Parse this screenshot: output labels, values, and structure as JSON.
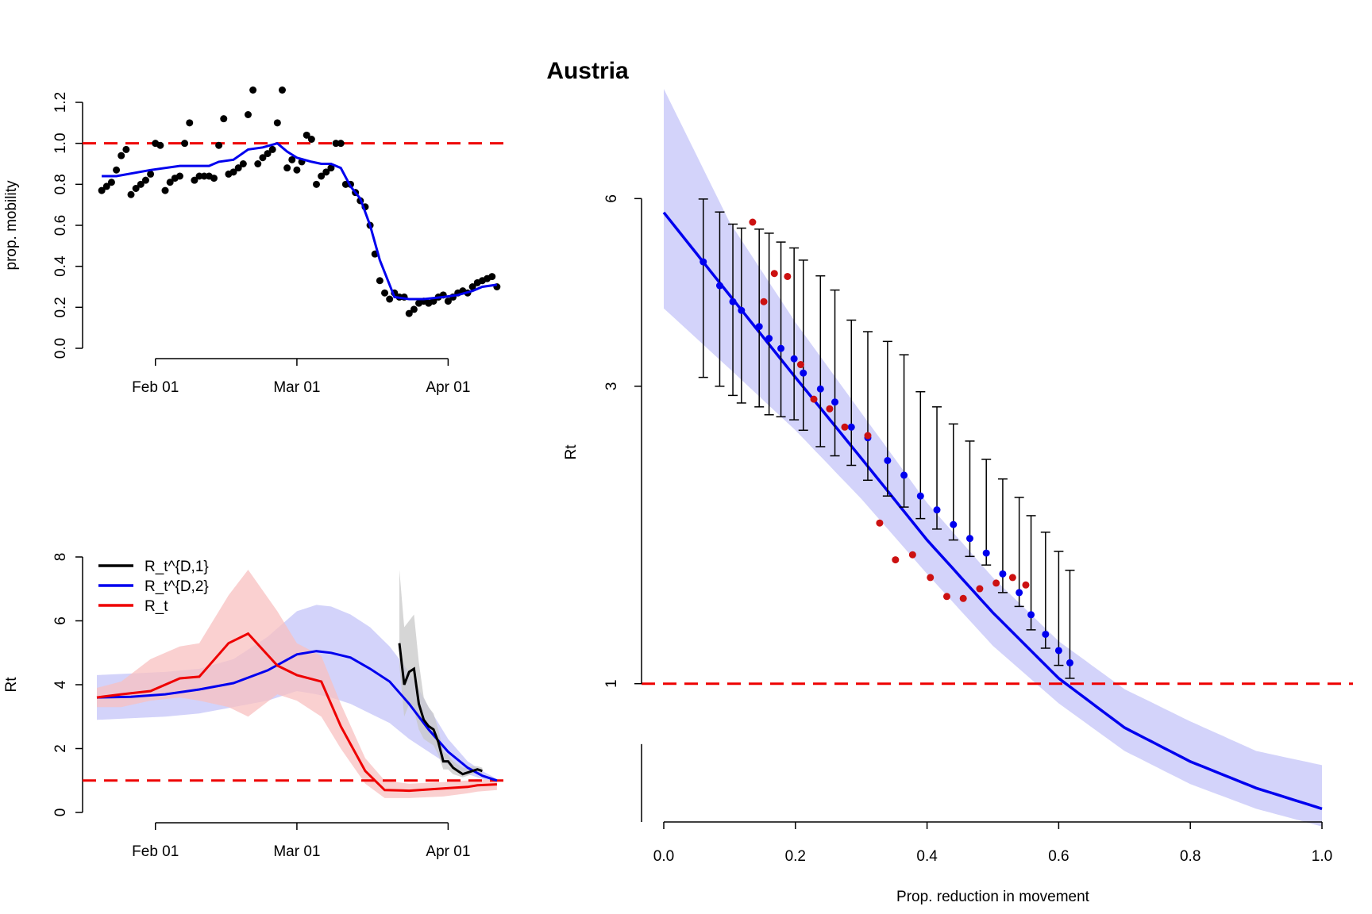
{
  "figure": {
    "title": "Austria"
  },
  "colors": {
    "black": "#000000",
    "blue": "#0000ee",
    "red": "#ee0000",
    "dark_red": "#cc1111",
    "blue_band": "#c4c4f8",
    "red_band": "#f8c0c0",
    "grey_band": "#c8c8c8"
  },
  "chart_data": [
    {
      "id": "mobility",
      "type": "scatter",
      "xlabel": "",
      "ylabel": "prop. mobility",
      "x_tick_labels": [
        "Feb 01",
        "Mar 01",
        "Apr 01"
      ],
      "x_tick_dates": [
        "2020-02-01",
        "2020-03-01",
        "2020-04-01"
      ],
      "x_range": [
        "2020-01-20",
        "2020-04-12"
      ],
      "y_ticks": [
        "0.0",
        "0.2",
        "0.4",
        "0.6",
        "0.8",
        "1.0",
        "1.2"
      ],
      "ylim": [
        0.0,
        1.2
      ],
      "reference_line": {
        "y": 1.0,
        "color": "red",
        "style": "dashed"
      },
      "series": [
        {
          "name": "",
          "color": "black",
          "marker": "point",
          "x": [
            "2020-01-21",
            "2020-01-22",
            "2020-01-23",
            "2020-01-24",
            "2020-01-25",
            "2020-01-26",
            "2020-01-27",
            "2020-01-28",
            "2020-01-29",
            "2020-01-30",
            "2020-01-31",
            "2020-02-01",
            "2020-02-02",
            "2020-02-03",
            "2020-02-04",
            "2020-02-05",
            "2020-02-06",
            "2020-02-07",
            "2020-02-08",
            "2020-02-09",
            "2020-02-10",
            "2020-02-11",
            "2020-02-12",
            "2020-02-13",
            "2020-02-14",
            "2020-02-15",
            "2020-02-16",
            "2020-02-17",
            "2020-02-18",
            "2020-02-19",
            "2020-02-20",
            "2020-02-21",
            "2020-02-22",
            "2020-02-23",
            "2020-02-24",
            "2020-02-25",
            "2020-02-26",
            "2020-02-27",
            "2020-02-28",
            "2020-02-29",
            "2020-03-01",
            "2020-03-02",
            "2020-03-03",
            "2020-03-04",
            "2020-03-05",
            "2020-03-06",
            "2020-03-07",
            "2020-03-08",
            "2020-03-09",
            "2020-03-10",
            "2020-03-11",
            "2020-03-12",
            "2020-03-13",
            "2020-03-14",
            "2020-03-15",
            "2020-03-16",
            "2020-03-17",
            "2020-03-18",
            "2020-03-19",
            "2020-03-20",
            "2020-03-21",
            "2020-03-22",
            "2020-03-23",
            "2020-03-24",
            "2020-03-25",
            "2020-03-26",
            "2020-03-27",
            "2020-03-28",
            "2020-03-29",
            "2020-03-30",
            "2020-03-31",
            "2020-04-01",
            "2020-04-02",
            "2020-04-03",
            "2020-04-04",
            "2020-04-05",
            "2020-04-06",
            "2020-04-07",
            "2020-04-08",
            "2020-04-09",
            "2020-04-10",
            "2020-04-11"
          ],
          "y": [
            0.77,
            0.79,
            0.81,
            0.87,
            0.94,
            0.97,
            0.75,
            0.78,
            0.8,
            0.82,
            0.85,
            1.0,
            0.99,
            0.77,
            0.81,
            0.83,
            0.84,
            1.0,
            1.1,
            0.82,
            0.84,
            0.84,
            0.84,
            0.83,
            0.99,
            1.12,
            0.85,
            0.86,
            0.88,
            0.9,
            1.14,
            1.26,
            0.9,
            0.93,
            0.95,
            0.97,
            1.1,
            1.26,
            0.88,
            0.92,
            0.87,
            0.91,
            1.04,
            1.02,
            0.8,
            0.84,
            0.86,
            0.88,
            1.0,
            1.0,
            0.8,
            0.8,
            0.76,
            0.72,
            0.69,
            0.6,
            0.46,
            0.33,
            0.27,
            0.24,
            0.27,
            0.25,
            0.25,
            0.17,
            0.19,
            0.22,
            0.23,
            0.22,
            0.23,
            0.25,
            0.26,
            0.23,
            0.25,
            0.27,
            0.28,
            0.27,
            0.3,
            0.32,
            0.33,
            0.34,
            0.35,
            0.3
          ]
        },
        {
          "name": "",
          "color": "blue",
          "marker": "line",
          "x": [
            "2020-01-21",
            "2020-01-24",
            "2020-01-31",
            "2020-02-06",
            "2020-02-12",
            "2020-02-14",
            "2020-02-17",
            "2020-02-20",
            "2020-02-23",
            "2020-02-26",
            "2020-02-28",
            "2020-03-01",
            "2020-03-04",
            "2020-03-06",
            "2020-03-08",
            "2020-03-10",
            "2020-03-12",
            "2020-03-14",
            "2020-03-16",
            "2020-03-18",
            "2020-03-21",
            "2020-03-24",
            "2020-03-27",
            "2020-03-31",
            "2020-04-03",
            "2020-04-06",
            "2020-04-08",
            "2020-04-11"
          ],
          "y": [
            0.84,
            0.84,
            0.87,
            0.89,
            0.89,
            0.91,
            0.92,
            0.97,
            0.98,
            1.0,
            0.96,
            0.93,
            0.91,
            0.9,
            0.9,
            0.88,
            0.79,
            0.73,
            0.6,
            0.43,
            0.25,
            0.24,
            0.24,
            0.25,
            0.26,
            0.28,
            0.3,
            0.31
          ]
        }
      ]
    },
    {
      "id": "rt_timeseries",
      "type": "line",
      "xlabel": "",
      "ylabel": "Rt",
      "x_tick_labels": [
        "Feb 01",
        "Mar 01",
        "Apr 01"
      ],
      "x_tick_dates": [
        "2020-02-01",
        "2020-03-01",
        "2020-04-01"
      ],
      "x_range": [
        "2020-01-20",
        "2020-04-12"
      ],
      "y_ticks": [
        "0",
        "2",
        "4",
        "6",
        "8"
      ],
      "ylim": [
        0,
        8
      ],
      "reference_line": {
        "y": 1,
        "color": "red",
        "style": "dashed"
      },
      "legend_position": "top-left",
      "series": [
        {
          "name": "R_t^{D,1}",
          "color": "black",
          "band_color": "grey_band",
          "x": [
            "2020-03-22",
            "2020-03-23",
            "2020-03-24",
            "2020-03-25",
            "2020-03-26",
            "2020-03-27",
            "2020-03-28",
            "2020-03-29",
            "2020-03-30",
            "2020-03-31",
            "2020-04-01",
            "2020-04-02",
            "2020-04-03",
            "2020-04-04",
            "2020-04-05",
            "2020-04-06",
            "2020-04-07",
            "2020-04-08"
          ],
          "y": [
            5.3,
            4.0,
            4.4,
            4.5,
            3.4,
            2.9,
            2.7,
            2.6,
            2.2,
            1.6,
            1.6,
            1.4,
            1.3,
            1.2,
            1.25,
            1.3,
            1.35,
            1.3
          ],
          "lower": [
            4.6,
            3.0,
            3.4,
            3.2,
            2.6,
            2.3,
            2.2,
            2.1,
            1.8,
            1.35,
            1.35,
            1.2,
            1.15,
            1.1,
            1.15,
            1.2,
            1.25,
            1.2
          ],
          "upper": [
            7.6,
            5.8,
            6.0,
            6.2,
            4.7,
            3.6,
            3.3,
            3.1,
            2.6,
            1.9,
            1.8,
            1.6,
            1.5,
            1.4,
            1.4,
            1.45,
            1.45,
            1.4
          ]
        },
        {
          "name": "R_t^{D,2}",
          "color": "blue",
          "band_color": "blue_band",
          "x": [
            "2020-01-20",
            "2020-01-27",
            "2020-02-03",
            "2020-02-10",
            "2020-02-17",
            "2020-02-24",
            "2020-03-01",
            "2020-03-05",
            "2020-03-08",
            "2020-03-12",
            "2020-03-16",
            "2020-03-20",
            "2020-03-24",
            "2020-03-28",
            "2020-04-01",
            "2020-04-05",
            "2020-04-08",
            "2020-04-11"
          ],
          "y": [
            3.6,
            3.62,
            3.7,
            3.85,
            4.05,
            4.45,
            4.95,
            5.05,
            5.0,
            4.85,
            4.5,
            4.1,
            3.4,
            2.6,
            1.9,
            1.4,
            1.15,
            1.0
          ],
          "lower": [
            2.9,
            2.95,
            3.0,
            3.1,
            3.3,
            3.5,
            3.8,
            3.7,
            3.6,
            3.4,
            3.1,
            2.8,
            2.3,
            1.9,
            1.5,
            1.2,
            1.05,
            0.95
          ],
          "upper": [
            4.3,
            4.35,
            4.4,
            4.5,
            4.8,
            5.5,
            6.3,
            6.5,
            6.45,
            6.2,
            5.8,
            5.2,
            4.4,
            3.3,
            2.3,
            1.6,
            1.3,
            1.05
          ]
        },
        {
          "name": "R_t",
          "color": "red",
          "band_color": "red_band",
          "x": [
            "2020-01-20",
            "2020-01-25",
            "2020-01-31",
            "2020-02-06",
            "2020-02-10",
            "2020-02-16",
            "2020-02-20",
            "2020-02-26",
            "2020-03-01",
            "2020-03-06",
            "2020-03-10",
            "2020-03-15",
            "2020-03-19",
            "2020-03-24",
            "2020-03-31",
            "2020-04-05",
            "2020-04-07",
            "2020-04-11"
          ],
          "y": [
            3.6,
            3.7,
            3.8,
            4.2,
            4.25,
            5.3,
            5.6,
            4.6,
            4.3,
            4.1,
            2.7,
            1.3,
            0.7,
            0.68,
            0.75,
            0.8,
            0.85,
            0.88
          ],
          "lower": [
            3.3,
            3.3,
            3.5,
            3.6,
            3.5,
            3.3,
            3.0,
            3.7,
            3.5,
            3.0,
            2.0,
            0.9,
            0.45,
            0.45,
            0.5,
            0.6,
            0.65,
            0.7
          ],
          "upper": [
            3.9,
            4.1,
            4.8,
            5.2,
            5.3,
            6.8,
            7.6,
            6.3,
            5.3,
            4.9,
            3.4,
            1.7,
            1.0,
            0.9,
            0.95,
            1.0,
            1.05,
            1.0
          ]
        }
      ]
    },
    {
      "id": "rt_vs_reduction",
      "type": "scatter",
      "xlabel": "Prop. reduction in movement",
      "ylabel": "Rt",
      "x_ticks": [
        "0.0",
        "0.2",
        "0.4",
        "0.6",
        "0.8",
        "1.0"
      ],
      "xlim": [
        0,
        1
      ],
      "y_ticks": [
        "1",
        "3",
        "6"
      ],
      "y_scale": "log",
      "ylim": [
        0.6,
        10
      ],
      "reference_line": {
        "y": 1,
        "color": "red",
        "style": "dashed"
      },
      "fit": {
        "color": "blue",
        "band_color": "blue_band",
        "x": [
          0.0,
          0.1,
          0.2,
          0.3,
          0.4,
          0.5,
          0.6,
          0.7,
          0.8,
          0.9,
          1.0
        ],
        "y": [
          5.7,
          4.2,
          3.1,
          2.3,
          1.7,
          1.3,
          1.02,
          0.85,
          0.75,
          0.68,
          0.63
        ],
        "lower": [
          4.0,
          3.2,
          2.55,
          1.98,
          1.5,
          1.15,
          0.93,
          0.78,
          0.69,
          0.63,
          0.59
        ],
        "upper": [
          9.0,
          5.5,
          3.8,
          2.72,
          1.95,
          1.48,
          1.17,
          0.98,
          0.87,
          0.78,
          0.74
        ]
      },
      "series": [
        {
          "name": "",
          "color": "blue",
          "x": [
            0.06,
            0.085,
            0.105,
            0.118,
            0.145,
            0.16,
            0.178,
            0.198,
            0.212,
            0.238,
            0.26,
            0.285,
            0.31,
            0.34,
            0.365,
            0.39,
            0.415,
            0.44,
            0.465,
            0.49,
            0.515,
            0.54,
            0.558,
            0.58,
            0.6,
            0.617
          ],
          "y": [
            4.75,
            4.35,
            4.1,
            3.97,
            3.74,
            3.58,
            3.45,
            3.32,
            3.15,
            2.97,
            2.83,
            2.58,
            2.48,
            2.28,
            2.16,
            2.0,
            1.9,
            1.8,
            1.71,
            1.62,
            1.5,
            1.4,
            1.29,
            1.2,
            1.13,
            1.08
          ],
          "lower": [
            3.1,
            3.0,
            2.9,
            2.82,
            2.78,
            2.7,
            2.68,
            2.65,
            2.55,
            2.4,
            2.32,
            2.24,
            2.12,
            2.0,
            1.92,
            1.84,
            1.77,
            1.7,
            1.6,
            1.55,
            1.4,
            1.33,
            1.22,
            1.14,
            1.07,
            1.02
          ],
          "upper": [
            5.99,
            5.71,
            5.46,
            5.38,
            5.36,
            5.28,
            5.11,
            5.0,
            4.78,
            4.51,
            4.28,
            3.83,
            3.67,
            3.54,
            3.37,
            2.94,
            2.78,
            2.61,
            2.45,
            2.29,
            2.13,
            1.99,
            1.86,
            1.75,
            1.63,
            1.52
          ]
        },
        {
          "name": "",
          "color": "dark_red",
          "x": [
            0.135,
            0.152,
            0.168,
            0.188,
            0.208,
            0.228,
            0.252,
            0.275,
            0.31,
            0.328,
            0.352,
            0.378,
            0.405,
            0.43,
            0.455,
            0.48,
            0.505,
            0.53,
            0.55
          ],
          "y": [
            5.5,
            4.1,
            4.55,
            4.5,
            3.25,
            2.86,
            2.76,
            2.58,
            2.5,
            1.81,
            1.58,
            1.61,
            1.48,
            1.38,
            1.37,
            1.42,
            1.45,
            1.48,
            1.44
          ]
        }
      ]
    }
  ]
}
